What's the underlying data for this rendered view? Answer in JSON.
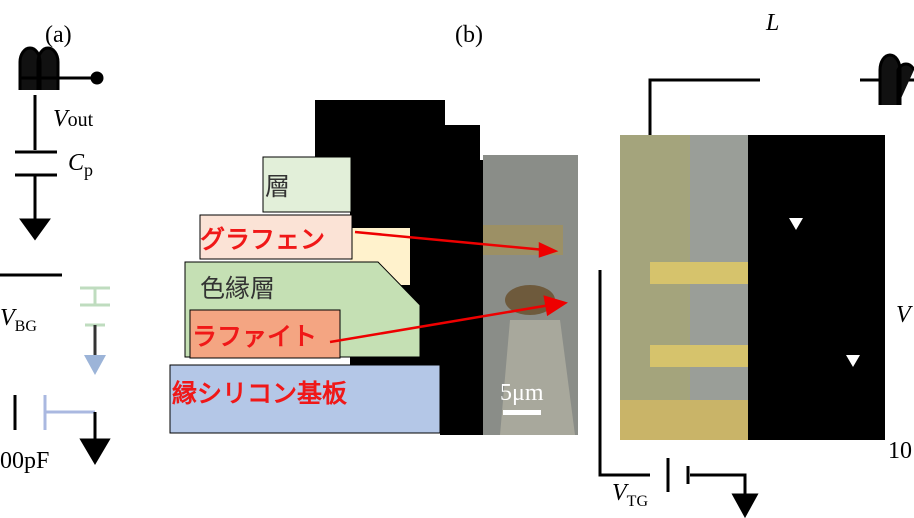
{
  "panels": {
    "a": "(a)",
    "b": "(b)"
  },
  "circuit": {
    "inductor": "L",
    "vout": {
      "main": "V",
      "sub": "out"
    },
    "cp": {
      "main": "C",
      "sub": "p"
    },
    "vbg": {
      "main": "V",
      "sub": "BG"
    },
    "cap": "00pF",
    "vtg": {
      "main": "V",
      "sub": "TG"
    },
    "right_value": "10",
    "right_v": "V"
  },
  "layers": {
    "top": "層",
    "graphene": "グラフェン",
    "insulator": "色縁層",
    "graphite": "ラファイト",
    "substrate": "縁シリコン基板"
  },
  "scale_bar": "5μm"
}
